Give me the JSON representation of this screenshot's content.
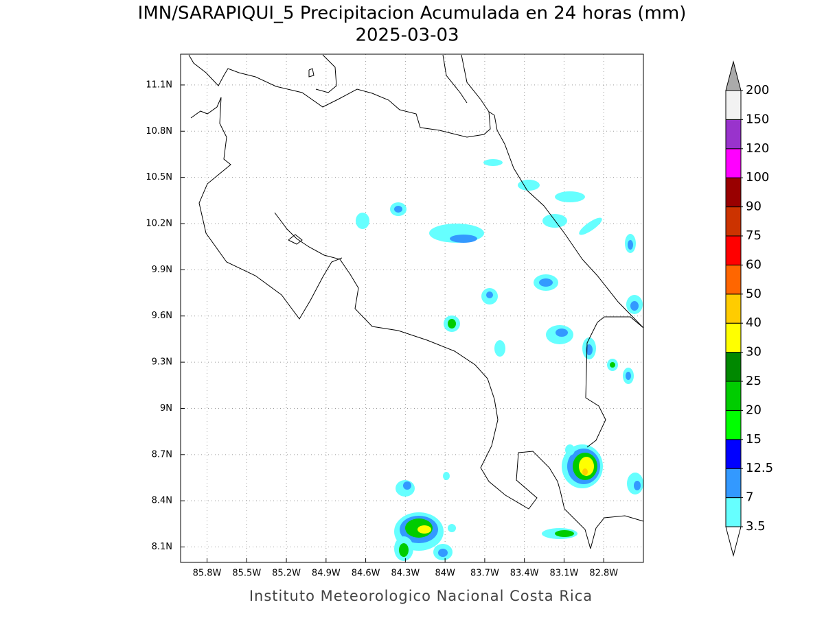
{
  "title": "IMN/SARAPIQUI_5 Precipitacion Acumulada en 24 horas (mm)",
  "subtitle": "2025-03-03",
  "footer": "Instituto Meteorologico Nacional Costa Rica",
  "map": {
    "lonlim": [
      -86,
      -82.5
    ],
    "latlim": [
      8,
      11.3
    ],
    "grid": true,
    "lon_ticks": [
      {
        "value": -85.8,
        "label": "85.8W"
      },
      {
        "value": -85.5,
        "label": "85.5W"
      },
      {
        "value": -85.2,
        "label": "85.2W"
      },
      {
        "value": -84.9,
        "label": "84.9W"
      },
      {
        "value": -84.6,
        "label": "84.6W"
      },
      {
        "value": -84.3,
        "label": "84.3W"
      },
      {
        "value": -84,
        "label": "84W"
      },
      {
        "value": -83.7,
        "label": "83.7W"
      },
      {
        "value": -83.4,
        "label": "83.4W"
      },
      {
        "value": -83.1,
        "label": "83.1W"
      },
      {
        "value": -82.8,
        "label": "82.8W"
      }
    ],
    "lat_ticks": [
      {
        "value": 8.1,
        "label": "8.1N"
      },
      {
        "value": 8.4,
        "label": "8.4N"
      },
      {
        "value": 8.7,
        "label": "8.7N"
      },
      {
        "value": 9,
        "label": "9N"
      },
      {
        "value": 9.3,
        "label": "9.3N"
      },
      {
        "value": 9.6,
        "label": "9.6N"
      },
      {
        "value": 9.9,
        "label": "9.9N"
      },
      {
        "value": 10.2,
        "label": "10.2N"
      },
      {
        "value": 10.5,
        "label": "10.5N"
      },
      {
        "value": 10.8,
        "label": "10.8N"
      },
      {
        "value": 11.1,
        "label": "11.1N"
      }
    ]
  },
  "colorbar": {
    "levels": [
      3.5,
      7,
      12.5,
      15,
      20,
      25,
      30,
      40,
      50,
      60,
      75,
      90,
      100,
      120,
      150,
      200
    ],
    "colors": [
      "#66ffff",
      "#3399ff",
      "#0000ff",
      "#00ff00",
      "#00cc00",
      "#008800",
      "#ffff00",
      "#ffcc00",
      "#ff6600",
      "#ff0000",
      "#cc3300",
      "#990000",
      "#ff00ff",
      "#9933cc",
      "#f2f2f2"
    ],
    "under_color": "#ffffff",
    "over_color": "#aaaaaa"
  }
}
